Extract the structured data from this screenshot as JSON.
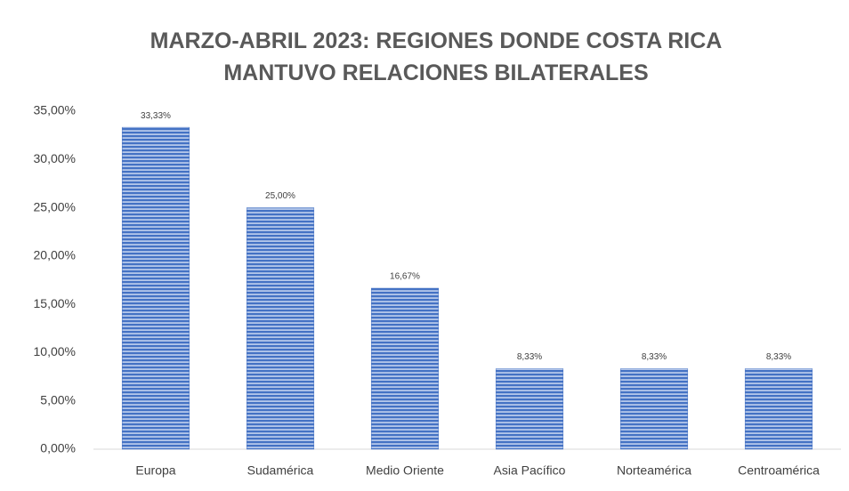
{
  "chart_data": {
    "type": "bar",
    "title": "MARZO-ABRIL 2023: REGIONES DONDE COSTA RICA MANTUVO RELACIONES BILATERALES",
    "categories": [
      "Europa",
      "Sudamérica",
      "Medio Oriente",
      "Asia Pacífico",
      "Norteamérica",
      "Centroamérica"
    ],
    "values": [
      33.33,
      25,
      16.67,
      8.33,
      8.33,
      8.33
    ],
    "value_labels": [
      "33,33%",
      "25,00%",
      "16,67%",
      "8,33%",
      "8,33%",
      "8,33%"
    ],
    "color": "#4472c4",
    "ylim": [
      0,
      35
    ],
    "yticks": [
      {
        "value": 0,
        "label": "0,00%"
      },
      {
        "value": 5,
        "label": "5,00%"
      },
      {
        "value": 10,
        "label": "10,00%"
      },
      {
        "value": 15,
        "label": "15,00%"
      },
      {
        "value": 20,
        "label": "20,00%"
      },
      {
        "value": 25,
        "label": "25,00%"
      },
      {
        "value": 30,
        "label": "30,00%"
      },
      {
        "value": 35,
        "label": "35,00%"
      }
    ],
    "grid": false
  }
}
